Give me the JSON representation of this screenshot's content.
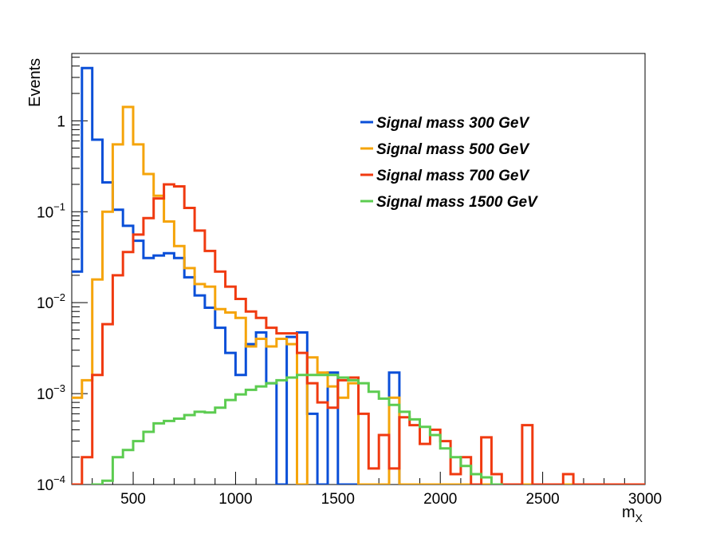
{
  "chart_data": {
    "type": "line",
    "style": "step-histogram",
    "xlabel": "m",
    "xlabel_sub": "X",
    "ylabel": "Events",
    "y_scale": "log",
    "xlim": [
      200,
      3000
    ],
    "ylim": [
      0.0001,
      5.5
    ],
    "grid": false,
    "legend_position": "top-right",
    "bin_width": 50,
    "x_ticks": [
      500,
      1000,
      1500,
      2000,
      2500,
      3000
    ],
    "x_tick_labels": [
      "500",
      "1000",
      "1500",
      "2000",
      "2500",
      "3000"
    ],
    "y_ticks": [
      {
        "value": 1,
        "base": "1",
        "exp": ""
      },
      {
        "value": 0.1,
        "base": "10",
        "exp": "−1"
      },
      {
        "value": 0.01,
        "base": "10",
        "exp": "−2"
      },
      {
        "value": 0.001,
        "base": "10",
        "exp": "−3"
      },
      {
        "value": 0.0001,
        "base": "10",
        "exp": "−4"
      }
    ],
    "series": [
      {
        "name": "Signal mass 300 GeV",
        "color": "#0a4fd8",
        "bins": [
          [
            200,
            250,
            0.022
          ],
          [
            250,
            300,
            3.8
          ],
          [
            300,
            350,
            0.62
          ],
          [
            350,
            400,
            0.21
          ],
          [
            400,
            450,
            0.105
          ],
          [
            450,
            500,
            0.07
          ],
          [
            500,
            550,
            0.048
          ],
          [
            550,
            600,
            0.031
          ],
          [
            600,
            650,
            0.033
          ],
          [
            650,
            700,
            0.035
          ],
          [
            700,
            750,
            0.031
          ],
          [
            750,
            800,
            0.019
          ],
          [
            800,
            850,
            0.012
          ],
          [
            850,
            900,
            0.0088
          ],
          [
            900,
            950,
            0.0053
          ],
          [
            950,
            1000,
            0.0028
          ],
          [
            1000,
            1050,
            0.0016
          ],
          [
            1050,
            1100,
            0.0035
          ],
          [
            1100,
            1150,
            0.0047
          ],
          [
            1150,
            1200,
            0.0013
          ],
          [
            1200,
            1250,
            0.0001
          ],
          [
            1250,
            1300,
            0.0042
          ],
          [
            1300,
            1350,
            0.0047
          ],
          [
            1350,
            1400,
            0.0006
          ],
          [
            1400,
            1450,
            0.0001
          ],
          [
            1450,
            1500,
            0.0017
          ],
          [
            1500,
            1750,
            0.0001
          ],
          [
            1750,
            1800,
            0.0017
          ],
          [
            1800,
            3000,
            0.0001
          ]
        ]
      },
      {
        "name": "Signal mass 500 GeV",
        "color": "#f5a40a",
        "bins": [
          [
            200,
            250,
            0.0009
          ],
          [
            250,
            300,
            0.0014
          ],
          [
            300,
            350,
            0.018
          ],
          [
            350,
            400,
            0.1
          ],
          [
            400,
            450,
            0.55
          ],
          [
            450,
            500,
            1.42
          ],
          [
            500,
            550,
            0.55
          ],
          [
            550,
            600,
            0.26
          ],
          [
            600,
            650,
            0.15
          ],
          [
            650,
            700,
            0.078
          ],
          [
            700,
            750,
            0.042
          ],
          [
            750,
            800,
            0.024
          ],
          [
            800,
            850,
            0.016
          ],
          [
            850,
            900,
            0.015
          ],
          [
            900,
            950,
            0.0085
          ],
          [
            950,
            1000,
            0.0078
          ],
          [
            1000,
            1050,
            0.0068
          ],
          [
            1050,
            1100,
            0.0033
          ],
          [
            1100,
            1150,
            0.004
          ],
          [
            1150,
            1200,
            0.0033
          ],
          [
            1200,
            1250,
            0.004
          ],
          [
            1250,
            1300,
            0.0035
          ],
          [
            1300,
            1350,
            0.0001
          ],
          [
            1350,
            1400,
            0.0025
          ],
          [
            1400,
            1450,
            0.0017
          ],
          [
            1450,
            1500,
            0.0012
          ],
          [
            1500,
            1550,
            0.0009
          ],
          [
            1550,
            1600,
            0.0013
          ],
          [
            1600,
            1750,
            0.0001
          ],
          [
            1750,
            1800,
            0.0009
          ],
          [
            1800,
            3000,
            0.0001
          ]
        ]
      },
      {
        "name": "Signal mass 700 GeV",
        "color": "#f03a10",
        "bins": [
          [
            200,
            250,
            0.0001
          ],
          [
            250,
            300,
            0.0002
          ],
          [
            300,
            350,
            0.0016
          ],
          [
            350,
            400,
            0.0058
          ],
          [
            400,
            450,
            0.02
          ],
          [
            450,
            500,
            0.036
          ],
          [
            500,
            550,
            0.056
          ],
          [
            550,
            600,
            0.085
          ],
          [
            600,
            650,
            0.14
          ],
          [
            650,
            700,
            0.2
          ],
          [
            700,
            750,
            0.19
          ],
          [
            750,
            800,
            0.11
          ],
          [
            800,
            850,
            0.062
          ],
          [
            850,
            900,
            0.037
          ],
          [
            900,
            950,
            0.022
          ],
          [
            950,
            1000,
            0.015
          ],
          [
            1000,
            1050,
            0.011
          ],
          [
            1050,
            1100,
            0.008
          ],
          [
            1100,
            1150,
            0.0068
          ],
          [
            1150,
            1200,
            0.0053
          ],
          [
            1200,
            1250,
            0.0046
          ],
          [
            1250,
            1300,
            0.0046
          ],
          [
            1300,
            1350,
            0.0028
          ],
          [
            1350,
            1400,
            0.0013
          ],
          [
            1400,
            1450,
            0.0008
          ],
          [
            1450,
            1500,
            0.0007
          ],
          [
            1500,
            1550,
            0.0014
          ],
          [
            1550,
            1600,
            0.0015
          ],
          [
            1600,
            1650,
            0.0006
          ],
          [
            1650,
            1700,
            0.00015
          ],
          [
            1700,
            1750,
            0.00035
          ],
          [
            1750,
            1800,
            0.00015
          ],
          [
            1800,
            1850,
            0.00055
          ],
          [
            1850,
            1900,
            0.00045
          ],
          [
            1900,
            1950,
            0.00028
          ],
          [
            1950,
            2000,
            0.0004
          ],
          [
            2000,
            2050,
            0.0003
          ],
          [
            2050,
            2100,
            0.00013
          ],
          [
            2100,
            2150,
            0.0002
          ],
          [
            2150,
            2200,
            0.0001
          ],
          [
            2200,
            2250,
            0.00033
          ],
          [
            2250,
            2300,
            0.00013
          ],
          [
            2300,
            2350,
            0.0001
          ],
          [
            2350,
            2400,
            0.0001
          ],
          [
            2400,
            2450,
            0.00045
          ],
          [
            2450,
            2600,
            0.0001
          ],
          [
            2600,
            2650,
            0.00013
          ],
          [
            2650,
            3000,
            0.0001
          ]
        ]
      },
      {
        "name": "Signal mass 1500 GeV",
        "color": "#5ccc50",
        "bins": [
          [
            200,
            250,
            8e-05
          ],
          [
            250,
            300,
            9e-05
          ],
          [
            300,
            350,
            0.0001
          ],
          [
            350,
            400,
            0.00011
          ],
          [
            400,
            450,
            0.0002
          ],
          [
            450,
            500,
            0.00024
          ],
          [
            500,
            550,
            0.0003
          ],
          [
            550,
            600,
            0.00038
          ],
          [
            600,
            650,
            0.00047
          ],
          [
            650,
            700,
            0.0005
          ],
          [
            700,
            750,
            0.00053
          ],
          [
            750,
            800,
            0.00058
          ],
          [
            800,
            850,
            0.00063
          ],
          [
            850,
            900,
            0.00062
          ],
          [
            900,
            950,
            0.0007
          ],
          [
            950,
            1000,
            0.00085
          ],
          [
            1000,
            1050,
            0.00098
          ],
          [
            1050,
            1100,
            0.0011
          ],
          [
            1100,
            1150,
            0.0012
          ],
          [
            1150,
            1200,
            0.0013
          ],
          [
            1200,
            1250,
            0.0014
          ],
          [
            1250,
            1300,
            0.0015
          ],
          [
            1300,
            1350,
            0.0016
          ],
          [
            1350,
            1400,
            0.0016
          ],
          [
            1400,
            1450,
            0.0016
          ],
          [
            1450,
            1500,
            0.0016
          ],
          [
            1500,
            1550,
            0.0015
          ],
          [
            1550,
            1600,
            0.0014
          ],
          [
            1600,
            1650,
            0.0013
          ],
          [
            1650,
            1700,
            0.00105
          ],
          [
            1700,
            1750,
            0.00088
          ],
          [
            1750,
            1800,
            0.00075
          ],
          [
            1800,
            1850,
            0.00063
          ],
          [
            1850,
            1900,
            0.00052
          ],
          [
            1900,
            1950,
            0.00043
          ],
          [
            1950,
            2000,
            0.00035
          ],
          [
            2000,
            2050,
            0.00025
          ],
          [
            2050,
            2100,
            0.0002
          ],
          [
            2100,
            2150,
            0.00016
          ],
          [
            2150,
            2200,
            0.00013
          ],
          [
            2200,
            2250,
            0.00012
          ],
          [
            2250,
            2300,
            0.0001
          ],
          [
            2300,
            3000,
            8e-05
          ]
        ]
      }
    ]
  }
}
